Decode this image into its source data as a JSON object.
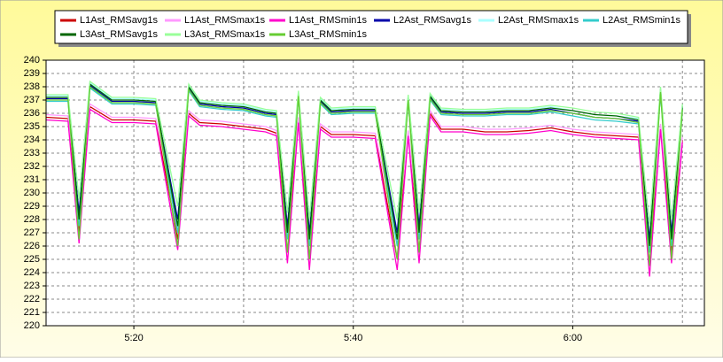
{
  "chart_data": {
    "type": "line",
    "x": [
      "5:12",
      "5:14",
      "5:15",
      "5:16",
      "5:18",
      "5:20",
      "5:22",
      "5:24",
      "5:25",
      "5:26",
      "5:28",
      "5:30",
      "5:32",
      "5:33",
      "5:34",
      "5:35",
      "5:36",
      "5:37",
      "5:38",
      "5:40",
      "5:42",
      "5:44",
      "5:45",
      "5:46",
      "5:47",
      "5:48",
      "5:50",
      "5:52",
      "5:54",
      "5:56",
      "5:58",
      "6:00",
      "6:02",
      "6:04",
      "6:06",
      "6:07",
      "6:08",
      "6:09",
      "6:10"
    ],
    "xlim": [
      "5:12",
      "6:12"
    ],
    "xticks": [
      "5:20",
      "5:40",
      "6:00"
    ],
    "x_minor_gridlines": [
      "5:30",
      "5:50",
      "6:10"
    ],
    "ylim": [
      220,
      240
    ],
    "yticks": [
      220,
      221,
      222,
      223,
      224,
      225,
      226,
      227,
      228,
      229,
      230,
      231,
      232,
      233,
      234,
      235,
      236,
      237,
      238,
      239,
      240
    ],
    "grid": true,
    "series": [
      {
        "name": "L1Ast_RMSavg1s",
        "color": "#cc0000",
        "values": [
          235.7,
          235.6,
          227,
          236.5,
          235.5,
          235.5,
          235.4,
          226.5,
          236,
          235.3,
          235.2,
          235,
          234.8,
          234.5,
          225.5,
          235.5,
          225,
          235,
          234.4,
          234.4,
          234.3,
          225,
          234.5,
          225.5,
          236,
          234.8,
          234.8,
          234.6,
          234.6,
          234.7,
          234.9,
          234.6,
          234.4,
          234.3,
          234.2,
          224.5,
          235,
          225.5,
          234
        ]
      },
      {
        "name": "L1Ast_RMSmax1s",
        "color": "#ff99ff",
        "values": [
          235.9,
          235.8,
          228.5,
          236.7,
          235.7,
          235.7,
          235.6,
          228,
          236.2,
          235.5,
          235.4,
          235.2,
          235,
          234.7,
          227,
          235.7,
          226.5,
          235.2,
          234.6,
          234.6,
          234.5,
          226.5,
          234.7,
          227,
          236.2,
          235,
          235,
          234.8,
          234.8,
          234.9,
          235.1,
          234.8,
          234.6,
          234.5,
          234.4,
          226,
          235.2,
          227,
          234.2
        ]
      },
      {
        "name": "L1Ast_RMSmin1s",
        "color": "#ff00cc",
        "values": [
          235.5,
          235.4,
          226.2,
          236.3,
          235.3,
          235.3,
          235.2,
          225.7,
          235.8,
          235.1,
          235,
          234.8,
          234.6,
          234.3,
          224.7,
          235.3,
          224.2,
          234.8,
          234.2,
          234.2,
          234.1,
          224.2,
          234.3,
          224.7,
          235.8,
          234.6,
          234.6,
          234.4,
          234.4,
          234.5,
          234.7,
          234.4,
          234.2,
          234.1,
          234,
          223.7,
          234.8,
          224.7,
          233.8
        ]
      },
      {
        "name": "L2Ast_RMSavg1s",
        "color": "#0000aa",
        "values": [
          237.1,
          237.1,
          228.5,
          238.1,
          236.9,
          236.9,
          236.8,
          228,
          237.9,
          236.7,
          236.5,
          236.4,
          236,
          235.9,
          227.5,
          237.4,
          227,
          236.9,
          236.1,
          236.2,
          236.2,
          227,
          237.1,
          227.5,
          237.2,
          236.1,
          236,
          236,
          236.1,
          236.1,
          236.3,
          236,
          235.7,
          235.6,
          235.4,
          226.5,
          237.7,
          227,
          236.4
        ]
      },
      {
        "name": "L2Ast_RMSmax1s",
        "color": "#aaffff",
        "values": [
          237.3,
          237.3,
          229.5,
          238.3,
          237.1,
          237.1,
          237,
          229,
          238.1,
          236.9,
          236.7,
          236.6,
          236.2,
          236.1,
          228.5,
          237.6,
          228,
          237.1,
          236.3,
          236.4,
          236.4,
          228,
          237.3,
          228.5,
          237.4,
          236.3,
          236.2,
          236.2,
          236.3,
          236.3,
          236.5,
          236.2,
          235.9,
          235.8,
          235.6,
          227.5,
          237.9,
          228,
          236.6
        ]
      },
      {
        "name": "L2Ast_RMSmin1s",
        "color": "#33cccc",
        "values": [
          236.9,
          236.9,
          227.5,
          237.9,
          236.7,
          236.7,
          236.6,
          227,
          237.7,
          236.5,
          236.3,
          236.2,
          235.8,
          235.7,
          226.5,
          237.2,
          226,
          236.7,
          235.9,
          236,
          236,
          226,
          236.9,
          226.5,
          237,
          235.9,
          235.8,
          235.8,
          235.9,
          235.9,
          236.1,
          235.8,
          235.5,
          235.4,
          235.2,
          225.5,
          237.5,
          226,
          236.2
        ]
      },
      {
        "name": "L3Ast_RMSavg1s",
        "color": "#006600",
        "values": [
          237.2,
          237.2,
          228,
          238.2,
          237,
          237,
          236.9,
          227.5,
          238,
          236.8,
          236.6,
          236.5,
          236.1,
          236,
          227,
          237.5,
          226.5,
          237,
          236.2,
          236.3,
          236.3,
          226.5,
          237.2,
          227,
          237.3,
          236.2,
          236.1,
          236.1,
          236.2,
          236.2,
          236.4,
          236.2,
          235.9,
          235.8,
          235.5,
          226,
          237.8,
          226.5,
          236.5
        ]
      },
      {
        "name": "L3Ast_RMSmax1s",
        "color": "#99ff99",
        "values": [
          237.4,
          237.4,
          229.5,
          238.4,
          237.2,
          237.2,
          237.1,
          229,
          238.2,
          237,
          236.8,
          236.7,
          236.3,
          236.2,
          228.5,
          237.7,
          228,
          237.2,
          236.4,
          236.5,
          236.5,
          228,
          237.4,
          228.5,
          237.5,
          236.4,
          236.3,
          236.3,
          236.4,
          236.4,
          236.6,
          236.4,
          236.1,
          236,
          235.7,
          227.5,
          238,
          228,
          236.7
        ]
      },
      {
        "name": "L3Ast_RMSmin1s",
        "color": "#66cc33",
        "values": [
          237,
          237,
          226.5,
          238,
          236.8,
          236.8,
          236.7,
          226,
          237.8,
          236.6,
          236.4,
          236.3,
          235.9,
          235.8,
          225.5,
          237.3,
          225,
          236.8,
          236,
          236.1,
          236.1,
          225,
          237,
          225.5,
          237.1,
          236,
          235.9,
          235.9,
          236,
          236,
          236.2,
          236,
          235.7,
          235.6,
          235.3,
          224.5,
          237.6,
          225,
          236.3
        ]
      }
    ]
  }
}
